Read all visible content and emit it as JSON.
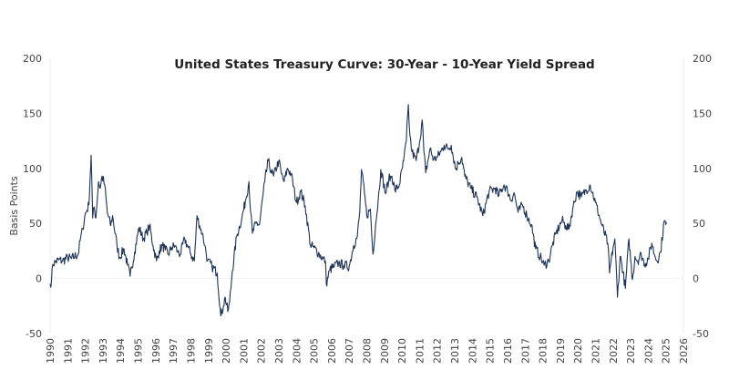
{
  "chart_data": {
    "type": "line",
    "title": "United States Treasury Curve: 30-Year - 10-Year Yield Spread",
    "xlabel": "",
    "ylabel": "Basis Points",
    "xlim": [
      1990,
      2026
    ],
    "ylim": [
      -50,
      200
    ],
    "grid": "zero-line only",
    "legend": "none",
    "line_color": "#1f3354",
    "x_ticks": [
      "1990",
      "1991",
      "1992",
      "1993",
      "1994",
      "1995",
      "1996",
      "1997",
      "1998",
      "1999",
      "2000",
      "2001",
      "2002",
      "2003",
      "2004",
      "2005",
      "2006",
      "2007",
      "2008",
      "2009",
      "2010",
      "2011",
      "2012",
      "2013",
      "2014",
      "2015",
      "2016",
      "2017",
      "2018",
      "2019",
      "2020",
      "2021",
      "2022",
      "2023",
      "2024",
      "2025",
      "2026"
    ],
    "y_ticks": [
      "-50",
      "0",
      "50",
      "100",
      "150",
      "200"
    ],
    "y_tick_values": [
      -50,
      0,
      50,
      100,
      150,
      200
    ],
    "series": [
      {
        "name": "30Y-10Y spread",
        "x": [
          1990.0,
          1990.08,
          1990.15,
          1990.3,
          1990.5,
          1990.7,
          1991.0,
          1991.2,
          1991.4,
          1991.6,
          1991.7,
          1991.85,
          1992.0,
          1992.1,
          1992.2,
          1992.33,
          1992.42,
          1992.5,
          1992.6,
          1992.75,
          1992.85,
          1992.95,
          1993.1,
          1993.25,
          1993.45,
          1993.55,
          1993.8,
          1993.95,
          1994.2,
          1994.4,
          1994.55,
          1994.8,
          1995.05,
          1995.3,
          1995.5,
          1995.65,
          1995.85,
          1996.05,
          1996.2,
          1996.38,
          1996.55,
          1996.73,
          1996.9,
          1997.1,
          1997.25,
          1997.4,
          1997.65,
          1997.85,
          1998.0,
          1998.2,
          1998.35,
          1998.5,
          1998.65,
          1998.8,
          1998.95,
          1999.2,
          1999.5,
          1999.7,
          1999.85,
          1999.95,
          2000.1,
          2000.2,
          2000.36,
          2000.6,
          2000.9,
          2001.1,
          2001.3,
          2001.4,
          2001.5,
          2001.7,
          2001.9,
          2002.2,
          2002.4,
          2002.55,
          2002.7,
          2003.0,
          2003.15,
          2003.3,
          2003.5,
          2003.7,
          2004.0,
          2004.25,
          2004.5,
          2004.8,
          2005.0,
          2005.3,
          2005.5,
          2005.65,
          2005.7,
          2005.9,
          2006.15,
          2006.4,
          2006.7,
          2007.0,
          2007.25,
          2007.46,
          2007.6,
          2007.7,
          2007.87,
          2008.0,
          2008.2,
          2008.35,
          2008.5,
          2008.65,
          2008.8,
          2009.07,
          2009.25,
          2009.43,
          2009.6,
          2009.85,
          2010.1,
          2010.25,
          2010.36,
          2010.45,
          2010.57,
          2010.8,
          2011.0,
          2011.15,
          2011.25,
          2011.35,
          2011.6,
          2011.8,
          2012.0,
          2012.2,
          2012.4,
          2012.6,
          2012.8,
          2013.06,
          2013.2,
          2013.4,
          2013.57,
          2013.9,
          2014.25,
          2014.6,
          2014.95,
          2015.3,
          2015.5,
          2015.8,
          2016.0,
          2016.2,
          2016.37,
          2016.6,
          2016.85,
          2017.1,
          2017.36,
          2017.6,
          2017.85,
          2018.08,
          2018.34,
          2018.55,
          2018.76,
          2019.1,
          2019.3,
          2019.5,
          2019.7,
          2019.95,
          2020.2,
          2020.45,
          2020.7,
          2021.0,
          2021.35,
          2021.7,
          2021.8,
          2022.0,
          2022.1,
          2022.25,
          2022.4,
          2022.5,
          2022.7,
          2022.9,
          2023.1,
          2023.25,
          2023.4,
          2023.6,
          2023.8,
          2024.0,
          2024.2,
          2024.35,
          2024.5,
          2024.7,
          2024.9,
          2025.0,
          2025.05
        ],
        "values": [
          -5,
          -2,
          13,
          15,
          17,
          16,
          19,
          18,
          20,
          22,
          34,
          45,
          59,
          62,
          67,
          112,
          55,
          65,
          55,
          88,
          82,
          93,
          85,
          60,
          48,
          57,
          30,
          19,
          27,
          12,
          2,
          24,
          46,
          36,
          42,
          48,
          30,
          16,
          25,
          30,
          26,
          22,
          28,
          30,
          24,
          22,
          36,
          28,
          22,
          16,
          57,
          48,
          41,
          30,
          16,
          11,
          5,
          -34,
          -25,
          -17,
          -30,
          -22,
          7,
          38,
          55,
          70,
          88,
          60,
          41,
          50,
          49,
          88,
          107,
          98,
          93,
          107,
          95,
          88,
          100,
          95,
          69,
          79,
          66,
          30,
          28,
          22,
          18,
          16,
          -5,
          8,
          11,
          14,
          12,
          11,
          30,
          38,
          60,
          99,
          77,
          57,
          63,
          22,
          49,
          71,
          99,
          77,
          90,
          93,
          80,
          85,
          107,
          125,
          158,
          130,
          115,
          107,
          124,
          144,
          115,
          96,
          118,
          108,
          110,
          115,
          121,
          118,
          121,
          99,
          105,
          110,
          93,
          82,
          74,
          57,
          79,
          82,
          75,
          85,
          80,
          71,
          78,
          60,
          67,
          57,
          49,
          27,
          20,
          12,
          16,
          30,
          41,
          53,
          48,
          45,
          63,
          79,
          74,
          80,
          85,
          69,
          49,
          32,
          5,
          28,
          36,
          -17,
          20,
          13,
          -9,
          36,
          -1,
          20,
          16,
          22,
          13,
          18,
          32,
          22,
          16,
          24,
          52,
          49,
          51
        ]
      }
    ]
  }
}
